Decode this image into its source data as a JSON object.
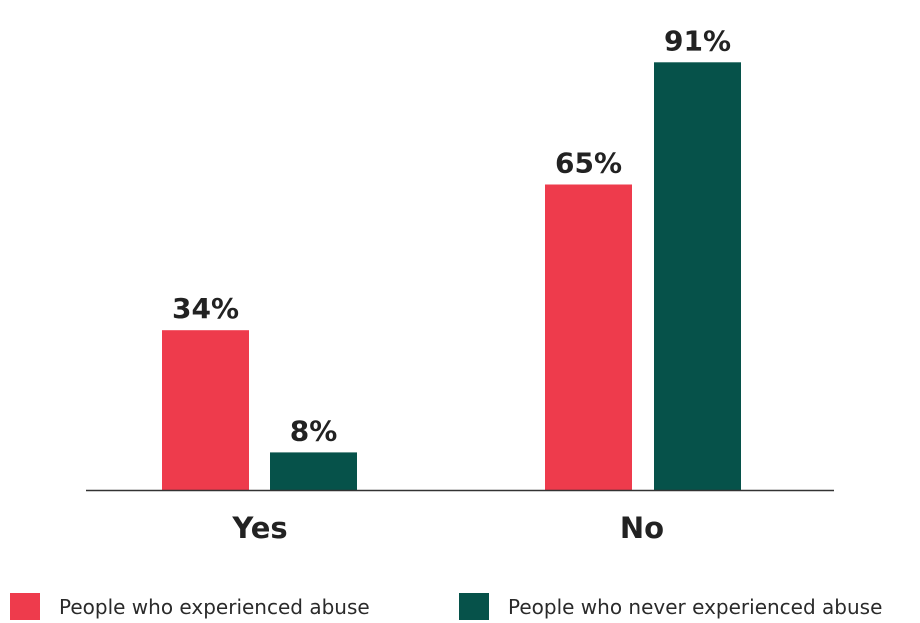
{
  "chart_data": {
    "type": "bar",
    "categories": [
      "Yes",
      "No"
    ],
    "series": [
      {
        "name": "People who experienced abuse",
        "values": [
          34,
          65
        ],
        "labels": [
          "34%",
          "65%"
        ],
        "color": "#ee3b4c"
      },
      {
        "name": "People who never experienced abuse",
        "values": [
          8,
          91
        ],
        "labels": [
          "8%",
          "91%"
        ],
        "color": "#06524a"
      }
    ],
    "title": "",
    "xlabel": "",
    "ylabel": "",
    "ylim": [
      0,
      100
    ],
    "grid": false,
    "legend_position": "bottom"
  }
}
